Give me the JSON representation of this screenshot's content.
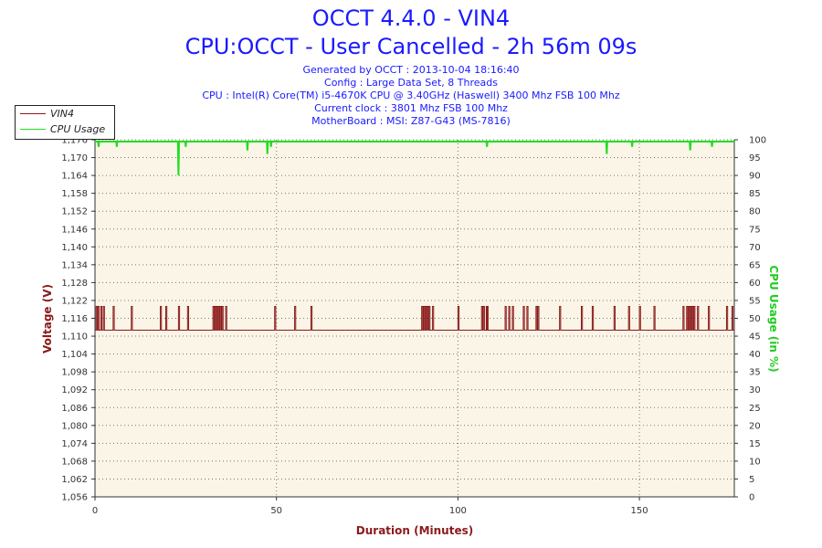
{
  "header": {
    "title": "OCCT 4.4.0 - VIN4",
    "subtitle": "CPU:OCCT - User Cancelled - 2h 56m 09s",
    "info_lines": [
      "Generated by OCCT : 2013-10-04 18:16:40",
      "Config : Large Data Set, 8 Threads",
      "CPU : Intel(R) Core(TM) i5-4670K CPU @ 3.40GHz (Haswell) 3400 Mhz FSB 100 Mhz",
      "Current clock : 3801 Mhz FSB 100 Mhz",
      "MotherBoard : MSI: Z87-G43 (MS-7816)"
    ]
  },
  "legend": {
    "items": [
      {
        "label": "VIN4",
        "color": "#8b1a1a"
      },
      {
        "label": "CPU Usage",
        "color": "#22dd22"
      }
    ]
  },
  "colors": {
    "plot_background": "#faf5e6",
    "voltage": "#8b1a1a",
    "cpu": "#22dd22",
    "grid": "#777777"
  },
  "chart_data": {
    "type": "line",
    "title": "OCCT 4.4.0 - VIN4",
    "xlabel": "Duration (Minutes)",
    "ylabel": "Voltage (V)",
    "y2label": "CPU Usage (in %)",
    "xlim": [
      0,
      176.15
    ],
    "ylim": [
      1.056,
      1.176
    ],
    "y2lim": [
      0,
      100
    ],
    "x_ticks": [
      "0",
      "50",
      "100",
      "150"
    ],
    "x_tick_values": [
      0,
      50,
      100,
      150
    ],
    "y_ticks": [
      "1,056",
      "1,062",
      "1,068",
      "1,074",
      "1,080",
      "1,086",
      "1,092",
      "1,098",
      "1,104",
      "1,110",
      "1,116",
      "1,122",
      "1,128",
      "1,134",
      "1,140",
      "1,146",
      "1,152",
      "1,158",
      "1,164",
      "1,170",
      "1,176"
    ],
    "y2_ticks": [
      "0",
      "5",
      "10",
      "15",
      "20",
      "25",
      "30",
      "35",
      "40",
      "45",
      "50",
      "55",
      "60",
      "65",
      "70",
      "75",
      "80",
      "85",
      "90",
      "95",
      "100"
    ],
    "grid": true,
    "legend_position": "top-left",
    "series": [
      {
        "name": "VIN4",
        "axis": "left",
        "baseline": 1.112,
        "spike_value": 1.12,
        "spike_times": [
          0.3,
          0.8,
          1.6,
          2.3,
          5,
          10,
          18,
          19.5,
          23,
          25.5,
          32.5,
          33,
          33.5,
          34,
          34.5,
          35,
          36,
          49.5,
          55,
          59.5,
          90,
          90.5,
          91,
          91.5,
          92,
          93,
          100,
          106.5,
          107,
          107.8,
          108,
          113,
          114,
          115,
          118,
          119,
          121.5,
          122,
          128,
          134,
          137,
          143,
          147,
          150,
          154,
          162,
          163,
          163.5,
          164,
          164.5,
          165,
          166,
          169,
          174,
          175.5
        ]
      },
      {
        "name": "CPU Usage",
        "axis": "right",
        "baseline": 99.5,
        "dips": [
          [
            1,
            98
          ],
          [
            6,
            98
          ],
          [
            23,
            90
          ],
          [
            25,
            98
          ],
          [
            42,
            97
          ],
          [
            47.5,
            96
          ],
          [
            48.5,
            98
          ],
          [
            108,
            98
          ],
          [
            141,
            96
          ],
          [
            148,
            98
          ],
          [
            164,
            97
          ],
          [
            170,
            98
          ]
        ]
      }
    ]
  }
}
